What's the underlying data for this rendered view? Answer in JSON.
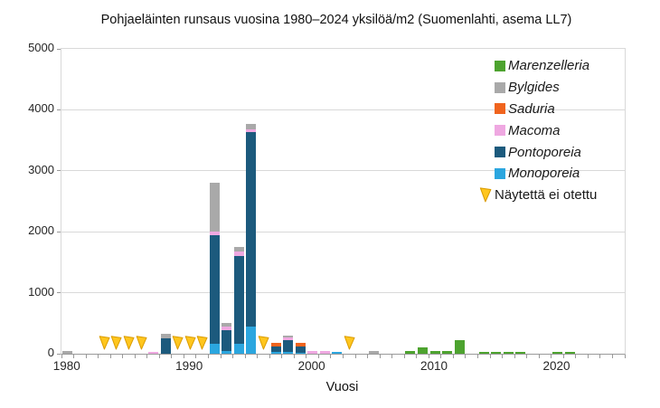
{
  "chart_data": {
    "type": "stacked-bar",
    "title": "Pohjaeläinten runsaus vuosina 1980–2024 yksilöä/m2 (Suomenlahti, asema LL7)",
    "xlabel": "Vuosi",
    "ylim": [
      0,
      5000
    ],
    "ytick_interval": 1000,
    "ytick_labels": [
      "0",
      "1000",
      "2000",
      "3000",
      "4000",
      "5000"
    ],
    "xtick_label_years": [
      1980,
      1990,
      2000,
      2010,
      2020
    ],
    "x_axis_range": [
      1979.5,
      2025.5
    ],
    "grid": true,
    "legend_position": "inside-top-right",
    "years": [
      1980,
      1981,
      1982,
      1983,
      1984,
      1985,
      1986,
      1987,
      1988,
      1989,
      1990,
      1991,
      1992,
      1993,
      1994,
      1995,
      1996,
      1997,
      1998,
      1999,
      2000,
      2001,
      2002,
      2003,
      2004,
      2005,
      2006,
      2007,
      2008,
      2009,
      2010,
      2011,
      2012,
      2013,
      2014,
      2015,
      2016,
      2017,
      2018,
      2019,
      2020,
      2021,
      2022,
      2023,
      2024
    ],
    "series": [
      {
        "name": "Monoporeia",
        "color": "#2BA6DF",
        "values": [
          0,
          0,
          0,
          0,
          0,
          0,
          0,
          0,
          0,
          0,
          0,
          0,
          160,
          40,
          170,
          440,
          0,
          25,
          30,
          15,
          0,
          0,
          25,
          0,
          0,
          0,
          0,
          0,
          0,
          0,
          0,
          0,
          0,
          0,
          0,
          0,
          0,
          0,
          0,
          0,
          0,
          0,
          0,
          0,
          0
        ]
      },
      {
        "name": "Pontoporeia",
        "color": "#1C5A7D",
        "values": [
          0,
          0,
          0,
          0,
          0,
          0,
          0,
          0,
          250,
          0,
          0,
          0,
          1790,
          350,
          1440,
          3190,
          0,
          100,
          200,
          105,
          0,
          0,
          0,
          0,
          0,
          0,
          0,
          0,
          0,
          0,
          0,
          0,
          0,
          0,
          0,
          0,
          0,
          0,
          0,
          0,
          0,
          0,
          0,
          0,
          0
        ]
      },
      {
        "name": "Macoma",
        "color": "#EFA8E1",
        "values": [
          0,
          0,
          0,
          0,
          0,
          0,
          0,
          30,
          0,
          0,
          0,
          0,
          60,
          55,
          65,
          50,
          0,
          0,
          30,
          0,
          40,
          45,
          0,
          0,
          0,
          0,
          0,
          0,
          0,
          0,
          0,
          0,
          0,
          0,
          0,
          0,
          0,
          0,
          0,
          0,
          0,
          0,
          0,
          0,
          0
        ]
      },
      {
        "name": "Saduria",
        "color": "#F0641E",
        "values": [
          0,
          0,
          0,
          0,
          0,
          0,
          0,
          0,
          0,
          0,
          0,
          0,
          0,
          0,
          0,
          0,
          0,
          60,
          0,
          60,
          0,
          0,
          0,
          0,
          0,
          0,
          0,
          0,
          0,
          0,
          0,
          0,
          0,
          0,
          0,
          0,
          0,
          0,
          0,
          0,
          0,
          0,
          0,
          0,
          0
        ]
      },
      {
        "name": "Bylgides",
        "color": "#A9A9A9",
        "values": [
          40,
          0,
          0,
          0,
          0,
          0,
          0,
          0,
          70,
          0,
          0,
          0,
          790,
          65,
          75,
          90,
          0,
          0,
          30,
          0,
          0,
          0,
          0,
          0,
          0,
          40,
          0,
          0,
          0,
          0,
          0,
          0,
          0,
          0,
          0,
          0,
          0,
          0,
          0,
          0,
          0,
          0,
          0,
          0,
          0
        ]
      },
      {
        "name": "Marenzelleria",
        "color": "#4DA32F",
        "values": [
          0,
          0,
          0,
          0,
          0,
          0,
          0,
          0,
          0,
          0,
          0,
          0,
          0,
          0,
          0,
          0,
          0,
          0,
          0,
          0,
          0,
          0,
          0,
          0,
          0,
          0,
          0,
          0,
          45,
          100,
          50,
          40,
          230,
          0,
          30,
          25,
          30,
          25,
          0,
          0,
          35,
          25,
          0,
          0,
          0
        ]
      }
    ],
    "no_sample": {
      "label": "Näytettä ei otettu",
      "years": [
        1983,
        1984,
        1985,
        1986,
        1989,
        1990,
        1991,
        1996,
        2003
      ],
      "marker": "yellow-flag",
      "marker_fill": "#FFC61E",
      "marker_stroke": "#DB9C00"
    },
    "colors": {
      "grid": "#d9d9d9",
      "axis": "#999999",
      "text": "#262626"
    }
  }
}
